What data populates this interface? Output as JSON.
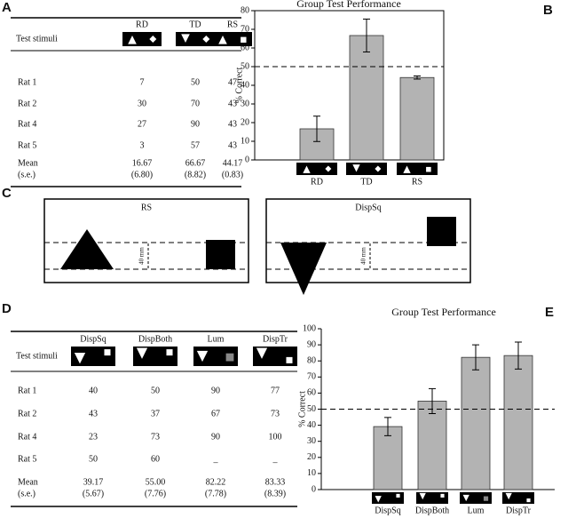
{
  "panel_labels": [
    "A",
    "B",
    "C",
    "D",
    "E"
  ],
  "table_a": {
    "header": [
      "Test stimuli",
      "RD",
      "TD",
      "RS"
    ],
    "rows": [
      [
        "Rat 1",
        "7",
        "50",
        "47"
      ],
      [
        "Rat 2",
        "30",
        "70",
        "43"
      ],
      [
        "Rat 4",
        "27",
        "90",
        "43"
      ],
      [
        "Rat 5",
        "3",
        "57",
        "43"
      ],
      [
        "Mean",
        "16.67",
        "66.67",
        "44.17"
      ],
      [
        "(s.e.)",
        "(6.80)",
        "(8.82)",
        "(0.83)"
      ]
    ]
  },
  "diagram_c": {
    "panels": [
      "RS",
      "DispSq"
    ],
    "scale_label": "40 mm"
  },
  "table_d": {
    "header": [
      "Test stimuli",
      "DispSq",
      "DispBoth",
      "Lum",
      "DispTr"
    ],
    "rows": [
      [
        "Rat 1",
        "40",
        "50",
        "90",
        "77"
      ],
      [
        "Rat 2",
        "43",
        "37",
        "67",
        "73"
      ],
      [
        "Rat 4",
        "23",
        "73",
        "90",
        "100"
      ],
      [
        "Rat 5",
        "50",
        "60",
        "_",
        "_"
      ],
      [
        "Mean",
        "39.17",
        "55.00",
        "82.22",
        "83.33"
      ],
      [
        "(s.e.)",
        "(5.67)",
        "(7.76)",
        "(7.78)",
        "(8.39)"
      ]
    ]
  },
  "chart_data": [
    {
      "type": "bar",
      "title": "Group Test Performance",
      "y_label": "% Correct",
      "categories": [
        "RD",
        "TD",
        "RS"
      ],
      "values": [
        16.67,
        66.67,
        44.17
      ],
      "errors": [
        6.8,
        8.82,
        0.83
      ],
      "color": "#b3b3b3",
      "ylim": [
        0,
        80
      ],
      "yticks": [
        0,
        10,
        20,
        30,
        40,
        50,
        60,
        70,
        80
      ],
      "reference_line": 50
    },
    {
      "type": "bar",
      "title": "Group Test Performance",
      "y_label": "% Correct",
      "categories": [
        "DispSq",
        "DispBoth",
        "Lum",
        "DispTr"
      ],
      "values": [
        39.17,
        55.0,
        82.22,
        83.33
      ],
      "errors": [
        5.67,
        7.76,
        7.78,
        8.39
      ],
      "color": "#b3b3b3",
      "ylim": [
        0,
        100
      ],
      "yticks": [
        0,
        10,
        20,
        30,
        40,
        50,
        60,
        70,
        80,
        90,
        100
      ],
      "reference_line": 50
    }
  ]
}
